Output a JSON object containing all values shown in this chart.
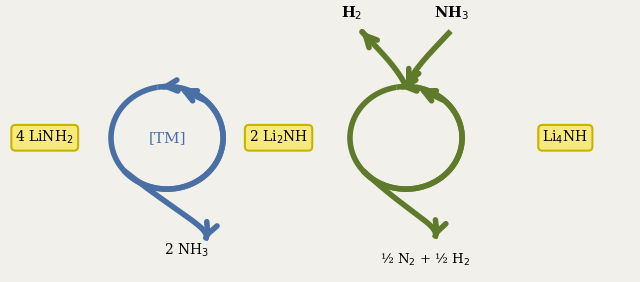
{
  "bg_color": "#f2f0eb",
  "blue_color": "#4a6fa5",
  "green_color": "#5f7a2a",
  "yellow_box_color": "#f7e97a",
  "yellow_box_edge": "#c8b400",
  "label_4linh2": "4 LiNH$_2$",
  "label_2linh": "2 Li$_2$NH",
  "label_tm": "[TM]",
  "label_2nh3": "2 NH$_3$",
  "label_h2": "H$_2$",
  "label_nh3": "NH$_3$",
  "label_li4nh": "Li$_4$NH",
  "label_n2h2": "½ N$_2$ + ½ H$_2$",
  "fig_width": 6.4,
  "fig_height": 2.82,
  "dpi": 100
}
